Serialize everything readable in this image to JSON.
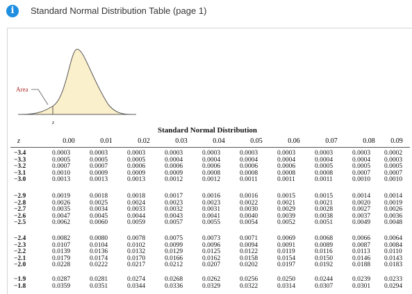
{
  "header": {
    "icon": "info-icon",
    "title": "Standard Normal Distribution Table (page 1)"
  },
  "figure": {
    "area_label": "Area",
    "z_label": "z"
  },
  "table": {
    "title": "Standard Normal Distribution",
    "z_header": "z",
    "columns": [
      "0.00",
      "0.01",
      "0.02",
      "0.03",
      "0.04",
      "0.05",
      "0.06",
      "0.07",
      "0.08",
      "0.09"
    ],
    "blocks": [
      [
        {
          "z": "−3.4",
          "v": [
            "0.0003",
            "0.0003",
            "0.0003",
            "0.0003",
            "0.0003",
            "0.0003",
            "0.0003",
            "0.0003",
            "0.0003",
            "0.0002"
          ]
        },
        {
          "z": "−3.3",
          "v": [
            "0.0005",
            "0.0005",
            "0.0005",
            "0.0004",
            "0.0004",
            "0.0004",
            "0.0004",
            "0.0004",
            "0.0004",
            "0.0003"
          ]
        },
        {
          "z": "−3.2",
          "v": [
            "0.0007",
            "0.0007",
            "0.0006",
            "0.0006",
            "0.0006",
            "0.0006",
            "0.0006",
            "0.0005",
            "0.0005",
            "0.0005"
          ]
        },
        {
          "z": "−3.1",
          "v": [
            "0.0010",
            "0.0009",
            "0.0009",
            "0.0009",
            "0.0008",
            "0.0008",
            "0.0008",
            "0.0008",
            "0.0007",
            "0.0007"
          ]
        },
        {
          "z": "−3.0",
          "v": [
            "0.0013",
            "0.0013",
            "0.0013",
            "0.0012",
            "0.0012",
            "0.0011",
            "0.0011",
            "0.0011",
            "0.0010",
            "0.0010"
          ]
        }
      ],
      [
        {
          "z": "−2.9",
          "v": [
            "0.0019",
            "0.0018",
            "0.0018",
            "0.0017",
            "0.0016",
            "0.0016",
            "0.0015",
            "0.0015",
            "0.0014",
            "0.0014"
          ]
        },
        {
          "z": "−2.8",
          "v": [
            "0.0026",
            "0.0025",
            "0.0024",
            "0.0023",
            "0.0023",
            "0.0022",
            "0.0021",
            "0.0021",
            "0.0020",
            "0.0019"
          ]
        },
        {
          "z": "−2.7",
          "v": [
            "0.0035",
            "0.0034",
            "0.0033",
            "0.0032",
            "0.0031",
            "0.0030",
            "0.0029",
            "0.0028",
            "0.0027",
            "0.0026"
          ]
        },
        {
          "z": "−2.6",
          "v": [
            "0.0047",
            "0.0045",
            "0.0044",
            "0.0043",
            "0.0041",
            "0.0040",
            "0.0039",
            "0.0038",
            "0.0037",
            "0.0036"
          ]
        },
        {
          "z": "−2.5",
          "v": [
            "0.0062",
            "0.0060",
            "0.0059",
            "0.0057",
            "0.0055",
            "0.0054",
            "0.0052",
            "0.0051",
            "0.0049",
            "0.0048"
          ]
        }
      ],
      [
        {
          "z": "−2.4",
          "v": [
            "0.0082",
            "0.0080",
            "0.0078",
            "0.0075",
            "0.0073",
            "0.0071",
            "0.0069",
            "0.0068",
            "0.0066",
            "0.0064"
          ]
        },
        {
          "z": "−2.3",
          "v": [
            "0.0107",
            "0.0104",
            "0.0102",
            "0.0099",
            "0.0096",
            "0.0094",
            "0.0091",
            "0.0089",
            "0.0087",
            "0.0084"
          ]
        },
        {
          "z": "−2.2",
          "v": [
            "0.0139",
            "0.0136",
            "0.0132",
            "0.0129",
            "0.0125",
            "0.0122",
            "0.0119",
            "0.0116",
            "0.0113",
            "0.0110"
          ]
        },
        {
          "z": "−2.1",
          "v": [
            "0.0179",
            "0.0174",
            "0.0170",
            "0.0166",
            "0.0162",
            "0.0158",
            "0.0154",
            "0.0150",
            "0.0146",
            "0.0143"
          ]
        },
        {
          "z": "−2.0",
          "v": [
            "0.0228",
            "0.0222",
            "0.0217",
            "0.0212",
            "0.0207",
            "0.0202",
            "0.0197",
            "0.0192",
            "0.0188",
            "0.0183"
          ]
        }
      ],
      [
        {
          "z": "−1.9",
          "v": [
            "0.0287",
            "0.0281",
            "0.0274",
            "0.0268",
            "0.0262",
            "0.0256",
            "0.0250",
            "0.0244",
            "0.0239",
            "0.0233"
          ]
        },
        {
          "z": "−1.8",
          "v": [
            "0.0359",
            "0.0351",
            "0.0344",
            "0.0336",
            "0.0329",
            "0.0322",
            "0.0314",
            "0.0307",
            "0.0301",
            "0.0294"
          ]
        }
      ]
    ]
  },
  "colors": {
    "info_icon": "#1f8ee0",
    "shaded_area": "#fbf0cc",
    "curve": "#555555",
    "area_label": "#b03030"
  }
}
